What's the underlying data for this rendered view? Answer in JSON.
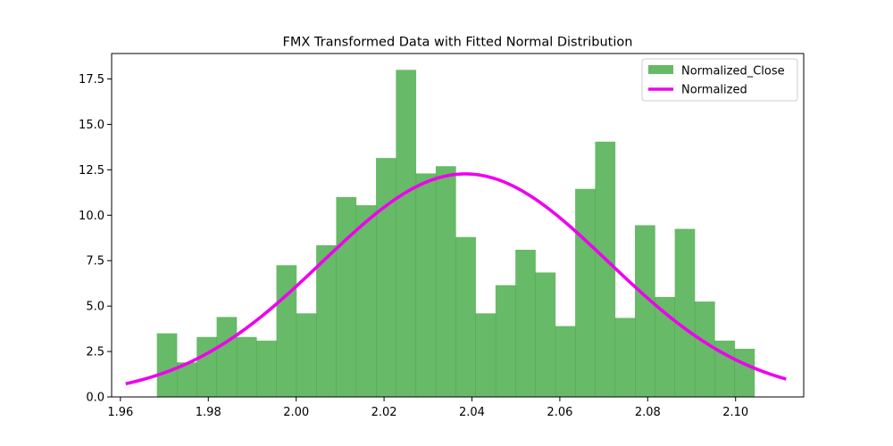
{
  "chart_data": {
    "type": "histogram",
    "title": "FMX Transformed Data with Fitted Normal Distribution",
    "xlabel": "",
    "ylabel": "",
    "xlim": [
      1.958,
      2.1155
    ],
    "ylim": [
      0,
      18.9
    ],
    "x_ticks": [
      "1.96",
      "1.98",
      "2.00",
      "2.02",
      "2.04",
      "2.06",
      "2.08",
      "2.10"
    ],
    "x_tick_values": [
      1.96,
      1.98,
      2.0,
      2.02,
      2.04,
      2.06,
      2.08,
      2.1
    ],
    "y_ticks": [
      "0.0",
      "2.5",
      "5.0",
      "7.5",
      "10.0",
      "12.5",
      "15.0",
      "17.5"
    ],
    "y_tick_values": [
      0.0,
      2.5,
      5.0,
      7.5,
      10.0,
      12.5,
      15.0,
      17.5
    ],
    "grid": false,
    "legend_position": "top-right",
    "histogram": {
      "name": "Normalized_Close",
      "color": "#2ca02c",
      "bin_start": 1.9683,
      "bin_width": 0.004533,
      "values": [
        3.5,
        1.9,
        3.3,
        4.4,
        3.3,
        3.1,
        7.25,
        4.6,
        8.35,
        11.0,
        10.55,
        13.15,
        18.0,
        12.3,
        12.7,
        8.8,
        4.6,
        6.15,
        8.1,
        6.85,
        3.9,
        11.45,
        14.05,
        4.35,
        9.45,
        5.5,
        9.25,
        5.25,
        3.1,
        2.65
      ]
    },
    "fit": {
      "name": "Normalized",
      "color": "#ee00ee",
      "mean": 2.0385,
      "std": 0.0325,
      "x_range": [
        1.9612,
        2.1115
      ]
    }
  }
}
